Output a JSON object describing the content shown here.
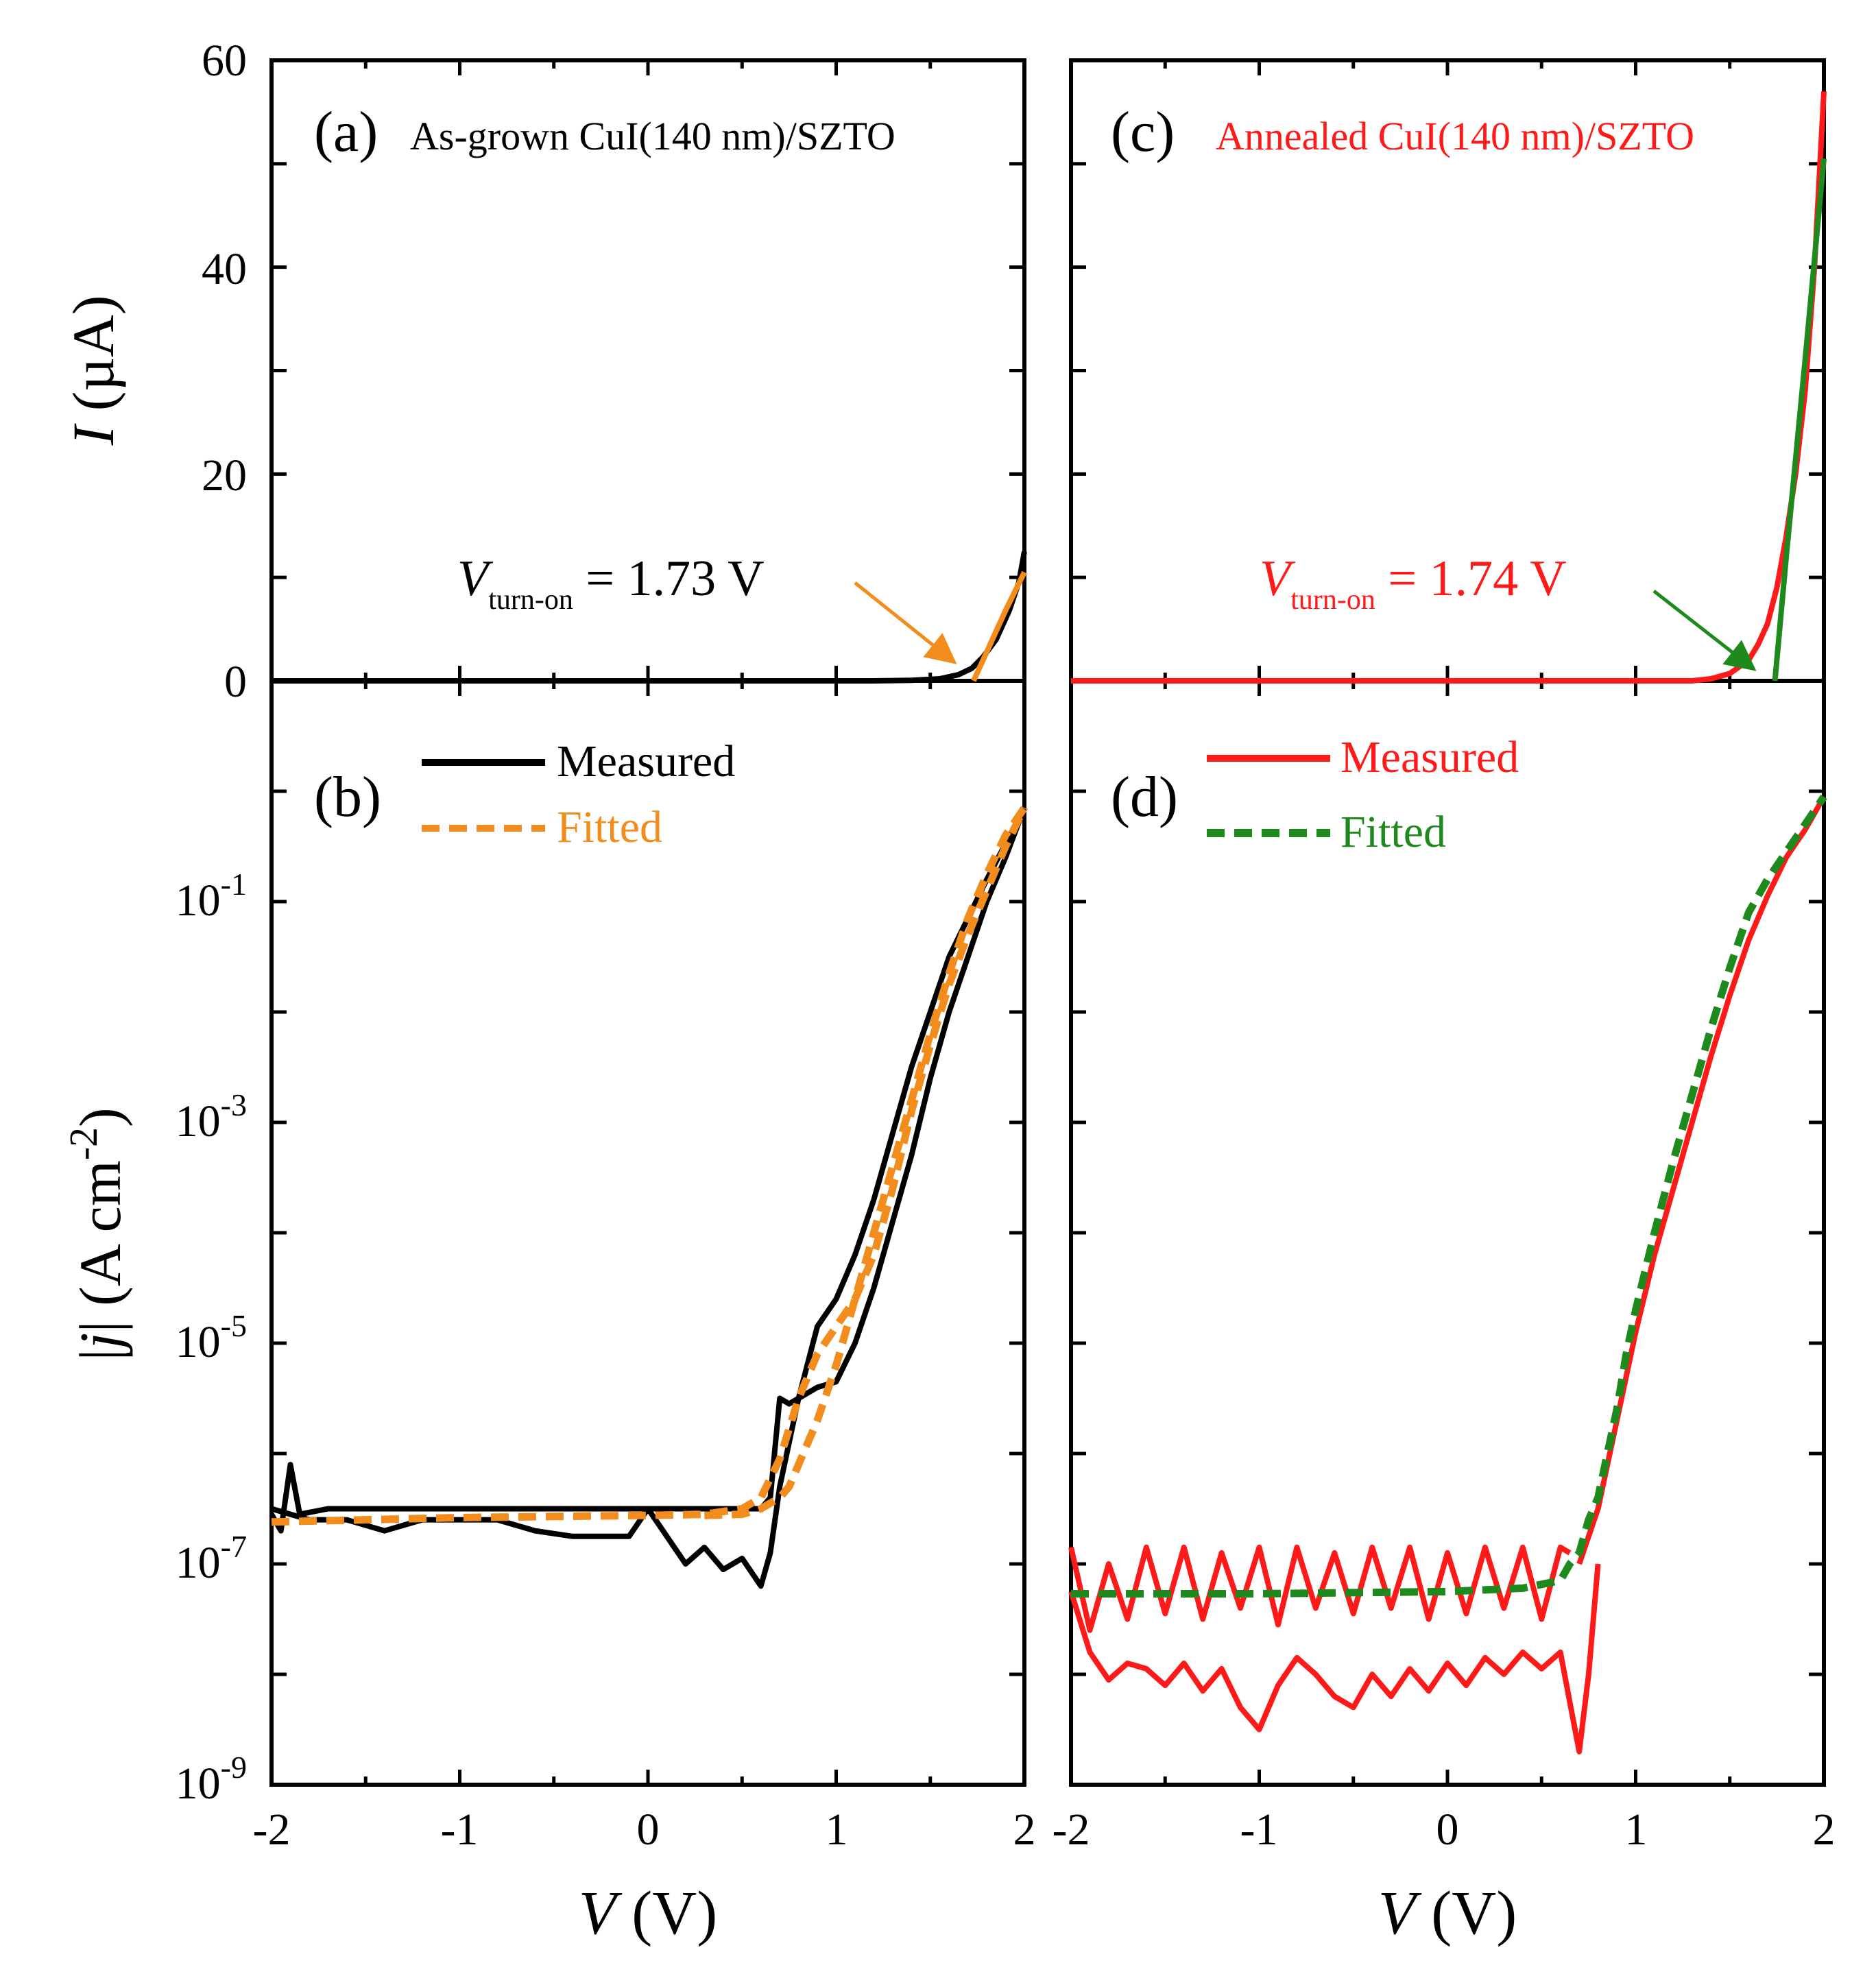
{
  "colors": {
    "axis": "#000000",
    "black_series": "#000000",
    "orange_series": "#f28c1c",
    "red_series": "#ff1a1a",
    "green_series": "#1e8a1e"
  },
  "chart_data": [
    {
      "panel": "a",
      "type": "line",
      "label": "(a)",
      "title": "As-grown CuI(140 nm)/SZTO",
      "xlim": [
        -2,
        2
      ],
      "ylim": [
        0,
        60
      ],
      "yticks": [
        "0",
        "20",
        "40",
        "60"
      ],
      "ylabel_italic": "I",
      "ylabel_rest": " (µA)",
      "annotation": {
        "sym": "V",
        "sub": "turn-on",
        "value": " = 1.73 V",
        "target_v": 1.73,
        "color_key": "orange_series"
      },
      "series": [
        {
          "name": "Measured",
          "color_key": "black_series",
          "x": [
            -2,
            1.2,
            1.4,
            1.55,
            1.65,
            1.72,
            1.78,
            1.85,
            1.92,
            1.97,
            2.0
          ],
          "y": [
            0,
            0,
            0.05,
            0.2,
            0.6,
            1.2,
            2.3,
            4.0,
            6.8,
            9.5,
            12.5
          ]
        },
        {
          "name": "Fitted",
          "color_key": "orange_series",
          "x": [
            1.73,
            1.8,
            1.9,
            2.0
          ],
          "y": [
            0,
            2.8,
            6.8,
            10.5
          ]
        }
      ]
    },
    {
      "panel": "b",
      "type": "line",
      "label": "(b)",
      "xlim": [
        -2,
        2
      ],
      "ylim_log10": [
        -9,
        1
      ],
      "ytick_labels": [
        {
          "base": "10",
          "exp": "-1"
        },
        {
          "base": "10",
          "exp": "-3"
        },
        {
          "base": "10",
          "exp": "-5"
        },
        {
          "base": "10",
          "exp": "-7"
        },
        {
          "base": "10",
          "exp": "-9"
        }
      ],
      "ylabel_pre": "|",
      "ylabel_italic": "j",
      "ylabel_mid": "| (A cm",
      "ylabel_sup": "-2",
      "ylabel_end": ")",
      "xticks": [
        "-2",
        "-1",
        "0",
        "1",
        "2"
      ],
      "xlabel_italic": "V",
      "xlabel_rest": " (V)",
      "legend": {
        "measured": "Measured",
        "fitted": "Fitted",
        "fitted_color_key": "orange_series"
      },
      "series": [
        {
          "name": "Measured (forward)",
          "color_key": "black_series",
          "x": [
            -2.0,
            -1.95,
            -1.9,
            -1.85,
            -1.7,
            -1.5,
            -1.3,
            -1.0,
            -0.8,
            -0.5,
            -0.2,
            0.0,
            0.2,
            0.4,
            0.6,
            0.65,
            0.7,
            0.75,
            0.8,
            0.9,
            1.0,
            1.1,
            1.2,
            1.3,
            1.4,
            1.5,
            1.6,
            1.7,
            1.8,
            1.9,
            2.0
          ],
          "y": [
            -6.55,
            -6.7,
            -6.1,
            -6.55,
            -6.5,
            -6.5,
            -6.5,
            -6.5,
            -6.5,
            -6.5,
            -6.5,
            -6.5,
            -6.5,
            -6.5,
            -6.5,
            -6.4,
            -5.5,
            -5.55,
            -5.5,
            -5.4,
            -5.35,
            -5.0,
            -4.5,
            -3.9,
            -3.3,
            -2.6,
            -2.0,
            -1.5,
            -1.0,
            -0.6,
            -0.15
          ]
        },
        {
          "name": "Measured (reverse)",
          "color_key": "black_series",
          "x": [
            2.0,
            1.8,
            1.6,
            1.4,
            1.3,
            1.2,
            1.1,
            1.0,
            0.9,
            0.8,
            0.7,
            0.65,
            0.6,
            0.5,
            0.4,
            0.3,
            0.2,
            0.1,
            0.0,
            -0.1,
            -0.2,
            -0.4,
            -0.6,
            -0.8,
            -1.0,
            -1.2,
            -1.4,
            -1.6,
            -1.8,
            -2.0
          ],
          "y": [
            -0.15,
            -0.8,
            -1.5,
            -2.5,
            -3.1,
            -3.7,
            -4.2,
            -4.6,
            -4.85,
            -5.5,
            -6.3,
            -6.9,
            -7.2,
            -6.95,
            -7.05,
            -6.85,
            -7.0,
            -6.75,
            -6.5,
            -6.75,
            -6.75,
            -6.75,
            -6.7,
            -6.6,
            -6.6,
            -6.6,
            -6.7,
            -6.6,
            -6.6,
            -6.5
          ]
        },
        {
          "name": "Fitted (upper)",
          "color_key": "orange_series",
          "dashed": true,
          "x": [
            -2.0,
            -1.5,
            -1.0,
            -0.5,
            0.0,
            0.3,
            0.5,
            0.6,
            0.7,
            0.8,
            0.9,
            1.0,
            1.1,
            1.2,
            1.3,
            1.4,
            1.5,
            1.6,
            1.7,
            1.8,
            1.9,
            2.0
          ],
          "y": [
            -6.62,
            -6.6,
            -6.58,
            -6.57,
            -6.56,
            -6.55,
            -6.5,
            -6.4,
            -6.05,
            -5.5,
            -5.1,
            -4.85,
            -4.6,
            -4.2,
            -3.6,
            -2.9,
            -2.3,
            -1.75,
            -1.3,
            -0.9,
            -0.5,
            -0.15
          ]
        },
        {
          "name": "Fitted (lower)",
          "color_key": "orange_series",
          "dashed": true,
          "x": [
            0.3,
            0.5,
            0.6,
            0.65,
            0.7,
            0.75,
            0.8,
            0.9,
            1.0,
            1.1,
            1.2,
            1.3,
            1.4,
            1.5,
            1.6,
            1.7,
            1.8,
            1.9,
            2.0
          ],
          "y": [
            -6.56,
            -6.55,
            -6.5,
            -6.45,
            -6.4,
            -6.3,
            -6.1,
            -5.7,
            -5.2,
            -4.6,
            -4.0,
            -3.4,
            -2.8,
            -2.2,
            -1.65,
            -1.15,
            -0.75,
            -0.4,
            -0.15
          ]
        }
      ]
    },
    {
      "panel": "c",
      "type": "line",
      "label": "(c)",
      "title": "Annealed CuI(140 nm)/SZTO",
      "xlim": [
        -2,
        2
      ],
      "ylim": [
        0,
        60
      ],
      "annotation": {
        "sym": "V",
        "sub": "turn-on",
        "value": " = 1.74 V",
        "target_v": 1.74,
        "color_key": "green_series"
      },
      "series": [
        {
          "name": "Measured",
          "color_key": "red_series",
          "x": [
            -2,
            1.3,
            1.4,
            1.5,
            1.6,
            1.65,
            1.7,
            1.75,
            1.8,
            1.85,
            1.9,
            1.95,
            2.0
          ],
          "y": [
            0,
            0,
            0.2,
            0.7,
            2.0,
            3.5,
            5.5,
            9.0,
            14.0,
            20.0,
            28.0,
            40.0,
            57.0
          ]
        },
        {
          "name": "Fitted",
          "color_key": "green_series",
          "x": [
            1.74,
            1.8,
            1.9,
            2.0
          ],
          "y": [
            0,
            12.0,
            31.0,
            50.5
          ]
        }
      ]
    },
    {
      "panel": "d",
      "type": "line",
      "label": "(d)",
      "xlim": [
        -2,
        2
      ],
      "ylim_log10": [
        -9,
        1
      ],
      "xticks": [
        "-2",
        "-1",
        "0",
        "1",
        "2"
      ],
      "xlabel_italic": "V",
      "xlabel_rest": " (V)",
      "legend": {
        "measured": "Measured",
        "fitted": "Fitted",
        "measured_color_key": "red_series",
        "fitted_color_key": "green_series"
      },
      "series": [
        {
          "name": "Measured (noisy floor A)",
          "color_key": "red_series",
          "x": [
            -2.0,
            -1.9,
            -1.8,
            -1.7,
            -1.6,
            -1.5,
            -1.4,
            -1.3,
            -1.2,
            -1.1,
            -1.0,
            -0.9,
            -0.8,
            -0.7,
            -0.6,
            -0.5,
            -0.4,
            -0.3,
            -0.2,
            -0.1,
            0.0,
            0.1,
            0.2,
            0.3,
            0.4,
            0.5,
            0.6,
            0.65
          ],
          "y": [
            -6.85,
            -7.6,
            -7.0,
            -7.5,
            -6.85,
            -7.45,
            -6.85,
            -7.5,
            -6.9,
            -7.4,
            -6.85,
            -7.55,
            -6.85,
            -7.4,
            -6.9,
            -7.45,
            -6.85,
            -7.4,
            -6.85,
            -7.5,
            -6.9,
            -7.45,
            -6.85,
            -7.4,
            -6.85,
            -7.5,
            -6.85,
            -6.9
          ]
        },
        {
          "name": "Measured (noisy floor B)",
          "color_key": "red_series",
          "x": [
            -2.0,
            -1.9,
            -1.8,
            -1.7,
            -1.6,
            -1.5,
            -1.4,
            -1.3,
            -1.2,
            -1.1,
            -1.0,
            -0.9,
            -0.8,
            -0.7,
            -0.6,
            -0.5,
            -0.4,
            -0.3,
            -0.2,
            -0.1,
            0.0,
            0.1,
            0.2,
            0.3,
            0.4,
            0.5,
            0.6,
            0.65,
            0.7,
            0.75,
            0.8
          ],
          "y": [
            -7.25,
            -7.8,
            -8.05,
            -7.9,
            -7.95,
            -8.1,
            -7.9,
            -8.15,
            -7.95,
            -8.3,
            -8.5,
            -8.1,
            -7.85,
            -8.0,
            -8.2,
            -8.3,
            -8.0,
            -8.2,
            -7.95,
            -8.15,
            -7.9,
            -8.1,
            -7.85,
            -8.0,
            -7.8,
            -7.95,
            -7.8,
            -8.25,
            -8.7,
            -8.0,
            -7.0
          ]
        },
        {
          "name": "Measured (rise)",
          "color_key": "red_series",
          "x": [
            0.7,
            0.8,
            0.9,
            1.0,
            1.1,
            1.2,
            1.3,
            1.4,
            1.5,
            1.6,
            1.7,
            1.8,
            1.9,
            2.0
          ],
          "y": [
            -7.0,
            -6.5,
            -5.7,
            -4.9,
            -4.2,
            -3.6,
            -3.0,
            -2.4,
            -1.85,
            -1.35,
            -0.95,
            -0.6,
            -0.35,
            -0.05
          ]
        },
        {
          "name": "Fitted",
          "color_key": "green_series",
          "dashed": true,
          "x": [
            -2.0,
            -1.5,
            -1.0,
            -0.5,
            0.0,
            0.4,
            0.6,
            0.65,
            0.7,
            0.75,
            0.8,
            0.85,
            0.9,
            0.95,
            1.0,
            1.1,
            1.2,
            1.3,
            1.4,
            1.5,
            1.6,
            1.7,
            1.8,
            1.9,
            2.0
          ],
          "y": [
            -7.27,
            -7.27,
            -7.27,
            -7.26,
            -7.25,
            -7.22,
            -7.15,
            -7.0,
            -6.9,
            -6.6,
            -6.4,
            -6.0,
            -5.6,
            -5.1,
            -4.7,
            -4.0,
            -3.35,
            -2.75,
            -2.15,
            -1.6,
            -1.1,
            -0.8,
            -0.55,
            -0.3,
            -0.05
          ]
        }
      ]
    }
  ]
}
